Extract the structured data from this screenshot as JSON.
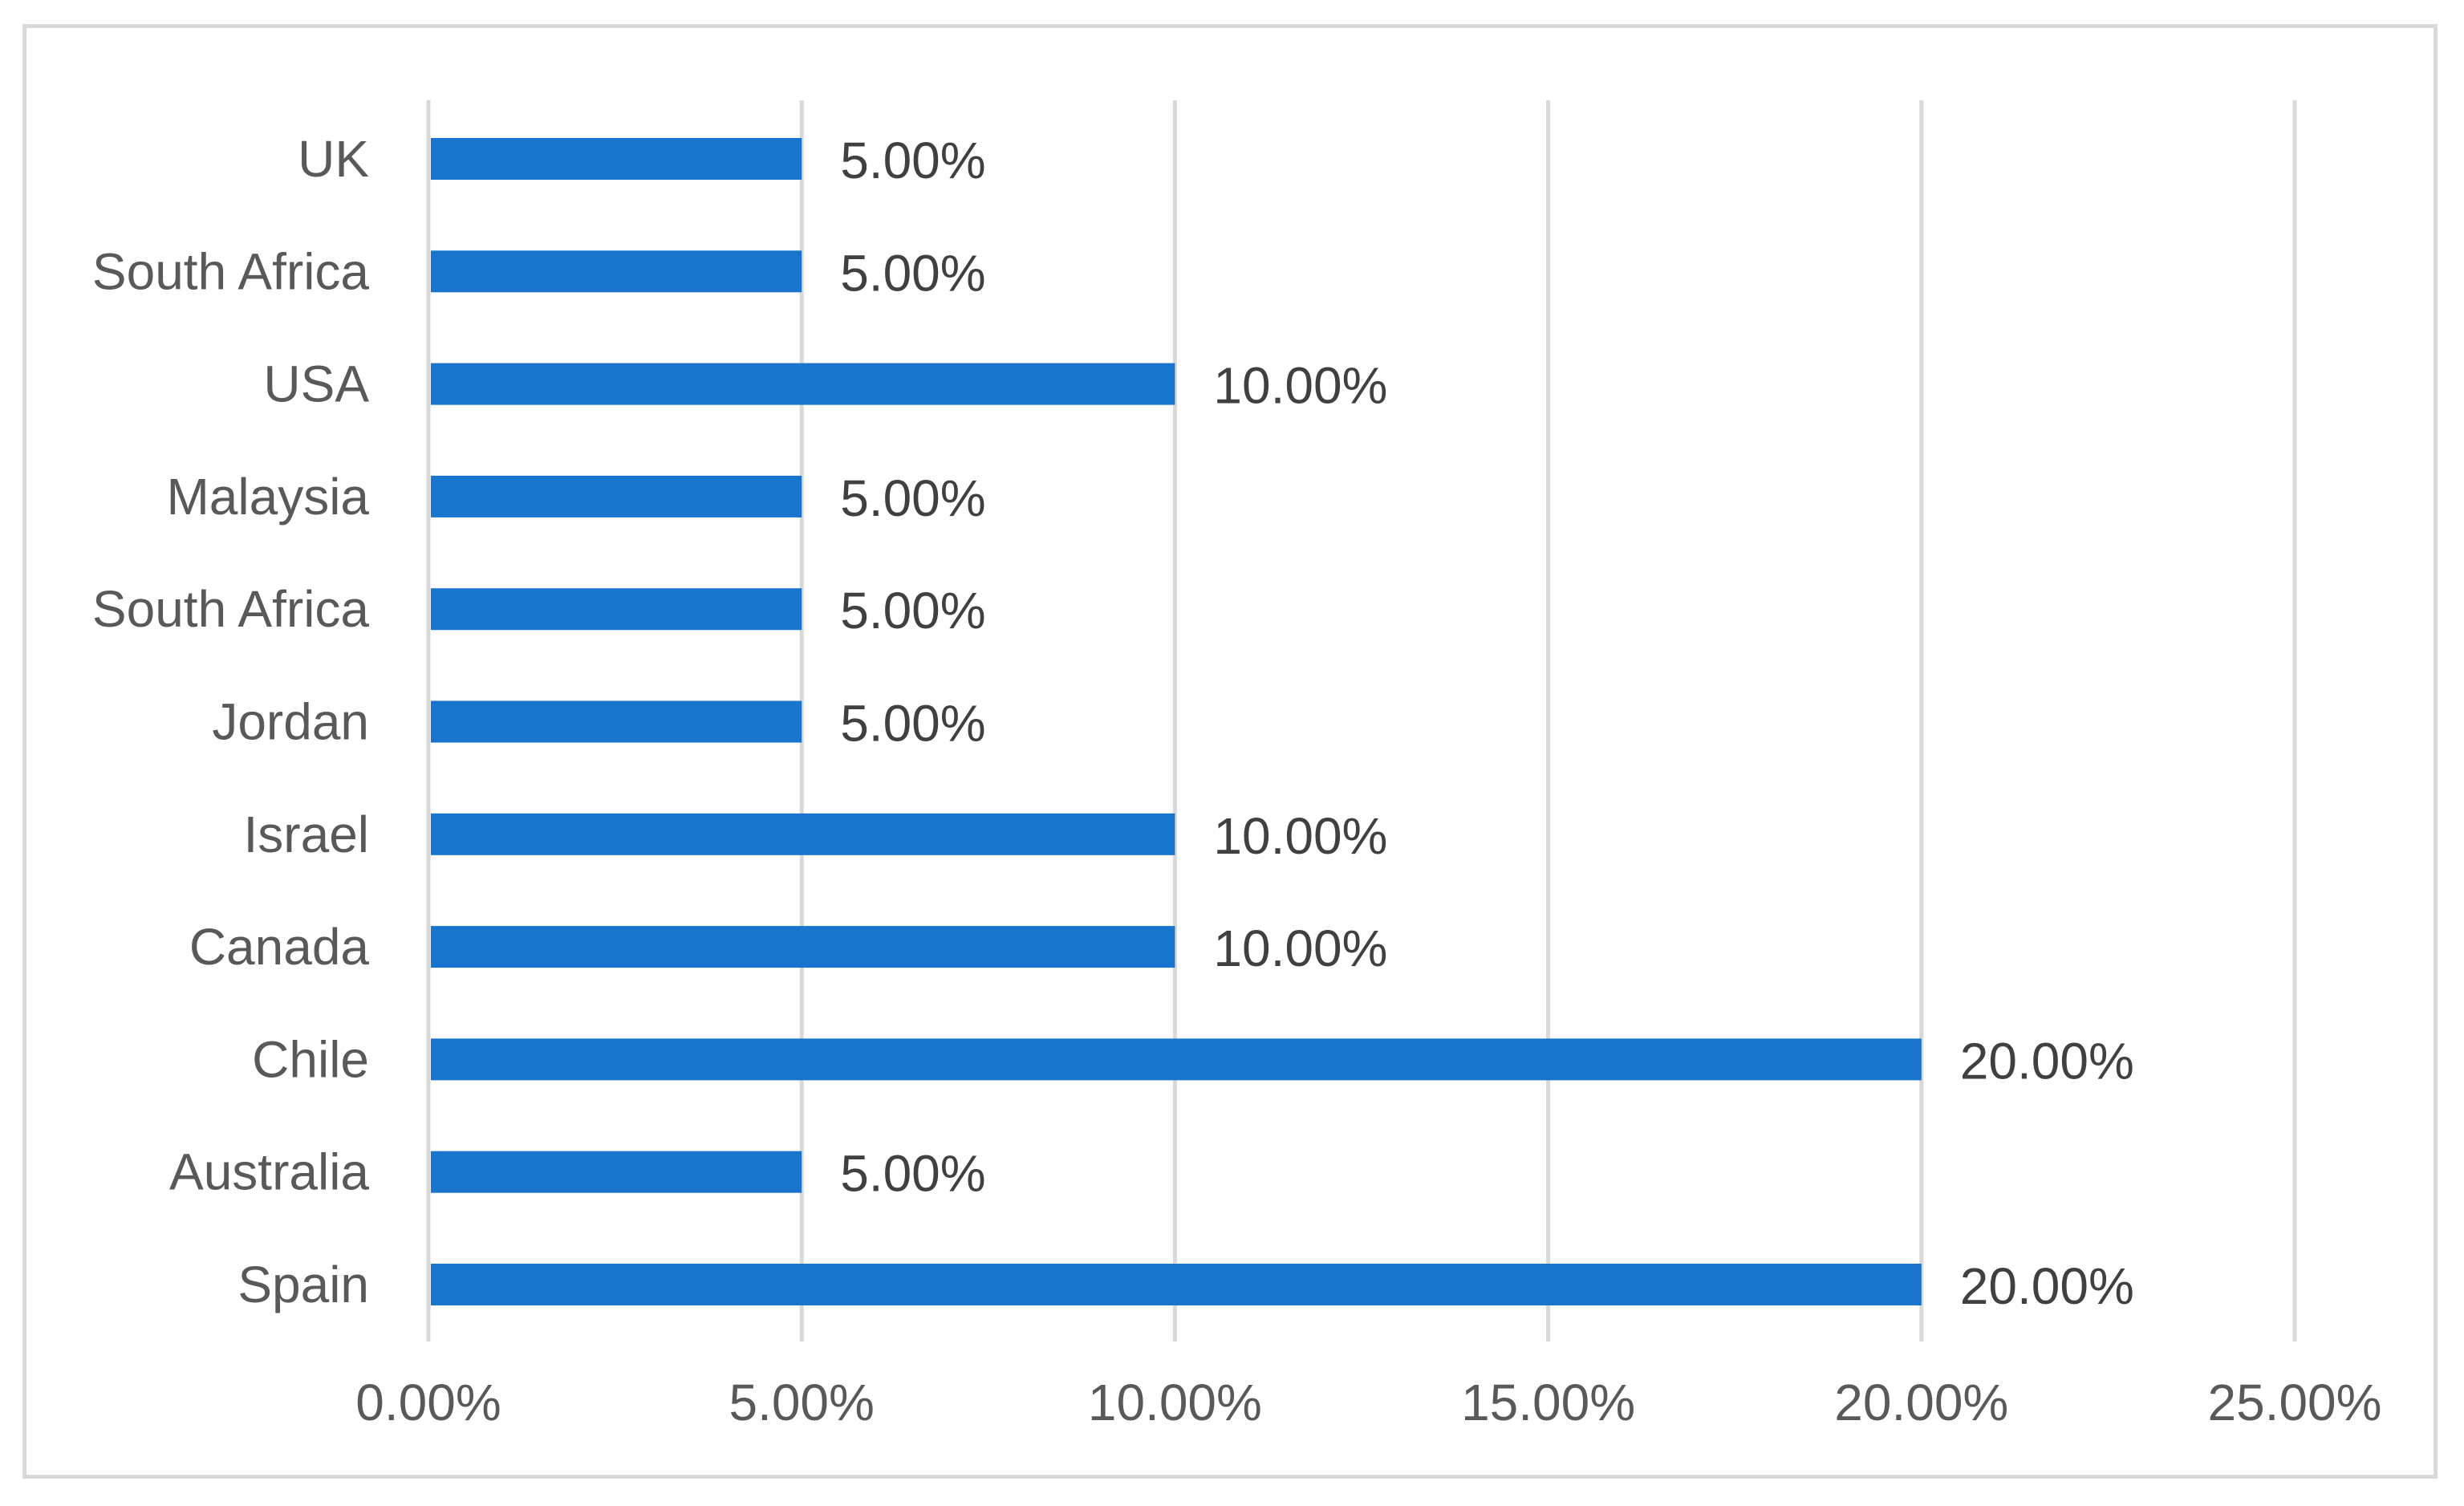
{
  "chart_data": {
    "type": "bar",
    "orientation": "horizontal",
    "categories": [
      "UK",
      "South Africa",
      "USA",
      "Malaysia",
      "South Africa",
      "Jordan",
      "Israel",
      "Canada",
      "Chile",
      "Australia",
      "Spain"
    ],
    "values": [
      5,
      5,
      10,
      5,
      5,
      5,
      10,
      10,
      20,
      5,
      20
    ],
    "data_labels": [
      "5.00%",
      "5.00%",
      "10.00%",
      "5.00%",
      "5.00%",
      "5.00%",
      "10.00%",
      "10.00%",
      "20.00%",
      "5.00%",
      "20.00%"
    ],
    "x_ticks": [
      0,
      5,
      10,
      15,
      20,
      25
    ],
    "x_tick_labels": [
      "0.00%",
      "5.00%",
      "10.00%",
      "15.00%",
      "20.00%",
      "25.00%"
    ],
    "xlim": [
      0,
      25
    ],
    "bar_color": "#1874CD",
    "grid": true,
    "grid_color": "#d9d9d9",
    "text_color": "#595959",
    "legend": false,
    "title": "",
    "xlabel": "",
    "ylabel": ""
  }
}
